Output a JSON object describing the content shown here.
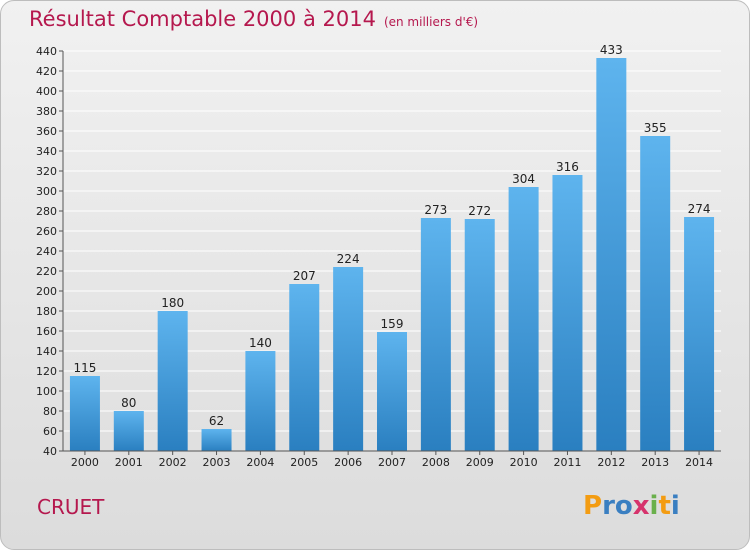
{
  "title": "Résultat Comptable 2000 à 2014",
  "subtitle": "(en milliers d'€)",
  "place": "CRUET",
  "logo": {
    "letters": [
      "P",
      "r",
      "o",
      "x",
      "i",
      "t",
      "i"
    ],
    "colors": [
      "#f39c12",
      "#3a7fc1",
      "#3a7fc1",
      "#d6336c",
      "#6ab04c",
      "#f39c12",
      "#3a7fc1"
    ]
  },
  "colors": {
    "title": "#b5184e",
    "bar_top": "#5eb4ee",
    "bar_bottom": "#2a7fc0",
    "grid": "#ffffff"
  },
  "chart_data": {
    "type": "bar",
    "title": "Résultat Comptable 2000 à 2014",
    "subtitle": "(en milliers d'€)",
    "categories": [
      "2000",
      "2001",
      "2002",
      "2003",
      "2004",
      "2005",
      "2006",
      "2007",
      "2008",
      "2009",
      "2010",
      "2011",
      "2012",
      "2013",
      "2014"
    ],
    "values": [
      115,
      80,
      180,
      62,
      140,
      207,
      224,
      159,
      273,
      272,
      304,
      316,
      433,
      355,
      274
    ],
    "ylim": [
      40,
      440
    ],
    "yticks": [
      40,
      60,
      80,
      100,
      120,
      140,
      160,
      180,
      200,
      220,
      240,
      260,
      280,
      300,
      320,
      340,
      360,
      380,
      400,
      420,
      440
    ],
    "grid": true,
    "data_labels": true
  }
}
